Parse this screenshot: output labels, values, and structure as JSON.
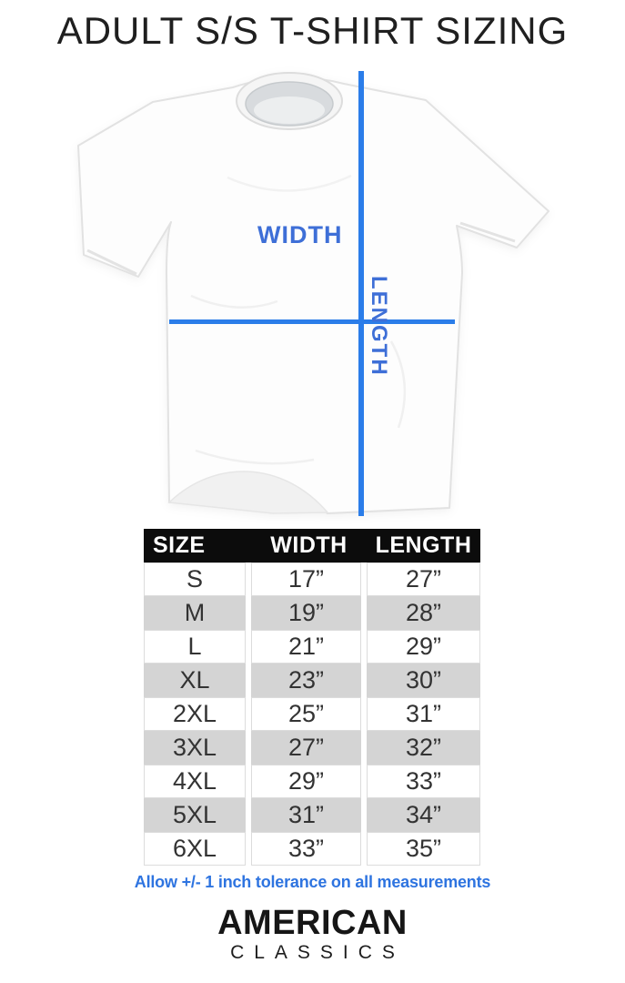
{
  "page": {
    "title": "ADULT S/S T-SHIRT SIZING",
    "background": "#ffffff"
  },
  "diagram": {
    "width_label": "WIDTH",
    "length_label": "LENGTH",
    "line_color": "#2b7de9",
    "label_color": "#3e6fd7",
    "shirt_color": "#fdfdfd"
  },
  "table": {
    "headers": [
      "SIZE",
      "WIDTH",
      "LENGTH"
    ],
    "rows": [
      [
        "S",
        "17”",
        "27”"
      ],
      [
        "M",
        "19”",
        "28”"
      ],
      [
        "L",
        "21”",
        "29”"
      ],
      [
        "XL",
        "23”",
        "30”"
      ],
      [
        "2XL",
        "25”",
        "31”"
      ],
      [
        "3XL",
        "27”",
        "32”"
      ],
      [
        "4XL",
        "29”",
        "33”"
      ],
      [
        "5XL",
        "31”",
        "34”"
      ],
      [
        "6XL",
        "33”",
        "35”"
      ]
    ],
    "header_bg": "#0c0c0c",
    "header_text_color": "#ffffff",
    "alt_row_bg": "#d4d4d4"
  },
  "note": {
    "text": "Allow +/- 1 inch tolerance on all measurements",
    "color": "#2e74e0"
  },
  "brand": {
    "name": "AMERICAN",
    "subname": "CLASSICS"
  },
  "chart_data": {
    "type": "table",
    "title": "ADULT S/S T-SHIRT SIZING",
    "columns": [
      "SIZE",
      "WIDTH",
      "LENGTH"
    ],
    "sizes": [
      "S",
      "M",
      "L",
      "XL",
      "2XL",
      "3XL",
      "4XL",
      "5XL",
      "6XL"
    ],
    "width_in": [
      17,
      19,
      21,
      23,
      25,
      27,
      29,
      31,
      33
    ],
    "length_in": [
      27,
      28,
      29,
      30,
      31,
      32,
      33,
      34,
      35
    ],
    "note": "Allow +/- 1 inch tolerance on all measurements"
  }
}
